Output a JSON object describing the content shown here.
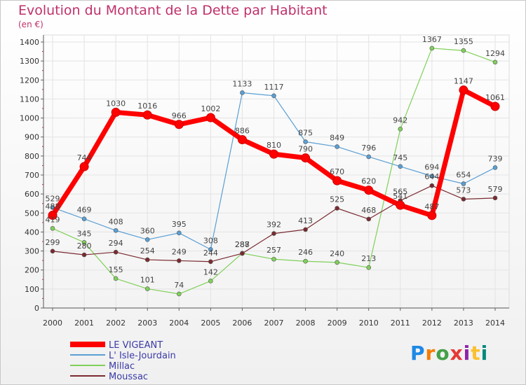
{
  "title": "Evolution du Montant de la Dette par Habitant",
  "unit": "(en €)",
  "logo": "Proxiti",
  "chart_data": {
    "type": "line",
    "title": "Evolution du Montant de la Dette par Habitant",
    "ylabel": "(en €)",
    "xlabel": "",
    "x": [
      "2000",
      "2001",
      "2002",
      "2003",
      "2004",
      "2005",
      "2006",
      "2007",
      "2008",
      "2009",
      "2010",
      "2011",
      "2012",
      "2013",
      "2014"
    ],
    "yticks": [
      0,
      100,
      200,
      300,
      400,
      500,
      600,
      700,
      800,
      900,
      1000,
      1100,
      1200,
      1300,
      1400
    ],
    "ylim": [
      0,
      1400
    ],
    "grid": true,
    "legend": "bottom-left",
    "series": [
      {
        "name": "LE VIGEANT",
        "color": "#ff0000",
        "values": [
          488,
          744,
          1030,
          1016,
          966,
          1002,
          886,
          810,
          790,
          670,
          620,
          541,
          487,
          1147,
          1061
        ]
      },
      {
        "name": "L' Isle-Jourdain",
        "color": "#5a9fd4",
        "values": [
          529,
          469,
          408,
          360,
          395,
          308,
          1133,
          1117,
          875,
          849,
          796,
          745,
          694,
          654,
          739
        ]
      },
      {
        "name": "Millac",
        "color": "#80d05a",
        "values": [
          419,
          345,
          155,
          101,
          74,
          142,
          288,
          257,
          246,
          240,
          213,
          942,
          1367,
          1355,
          1294
        ]
      },
      {
        "name": "Moussac",
        "color": "#7a2a30",
        "values": [
          299,
          280,
          294,
          254,
          249,
          244,
          287,
          392,
          413,
          525,
          468,
          565,
          644,
          573,
          579
        ]
      }
    ]
  }
}
